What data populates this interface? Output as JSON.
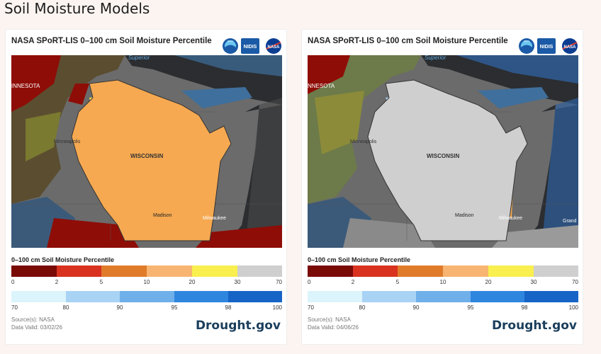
{
  "page": {
    "title": "Soil Moisture Models"
  },
  "legend_scale": {
    "title": "0–100 cm Soil Moisture Percentile",
    "row1_ticks": [
      "0",
      "2",
      "5",
      "10",
      "20",
      "30",
      "70"
    ],
    "row2_ticks": [
      "70",
      "80",
      "90",
      "95",
      "98",
      "100"
    ],
    "row1_colors": [
      "#7a0a06",
      "#d9321e",
      "#e07b2a",
      "#f7b571",
      "#f9ef4e",
      "#cfcfcf"
    ],
    "row2_colors": [
      "#dcf4fb",
      "#a9d3f4",
      "#6fb0ea",
      "#2f86df",
      "#1764c7"
    ]
  },
  "colors": {
    "drought_red": "#8e0d07",
    "wet_blue": "#2f86df",
    "land_gray": "#6a6a6a",
    "lake": "#2b2d30",
    "brand": "#1a3e5c"
  },
  "logos": [
    "NOAA",
    "NIDIS",
    "NASA"
  ],
  "panels": [
    {
      "title": "NASA SPoRT-LIS 0–100 cm Soil Moisture Percentile",
      "source": "Source(s): NASA",
      "date": "Data Valid: 03/02/26",
      "brand": "Drought.gov",
      "labels": {
        "lake": "Superior",
        "state_mn": "INNESOTA",
        "city1": "Minneapolis",
        "state": "WISCONSIN",
        "city2": "Madison",
        "city3": "Milwaukee"
      }
    },
    {
      "title": "NASA SPoRT-LIS 0–100 cm Soil Moisture Percentile",
      "source": "Source(s): NASA",
      "date": "Data Valid: 04/06/26",
      "brand": "Drought.gov",
      "labels": {
        "lake": "Superior",
        "state_mn": "NNESOTA",
        "city1": "Minneapolis",
        "state": "WISCONSIN",
        "city2": "Madison",
        "city3": "Milwaukee",
        "city4": "Grand"
      }
    }
  ]
}
